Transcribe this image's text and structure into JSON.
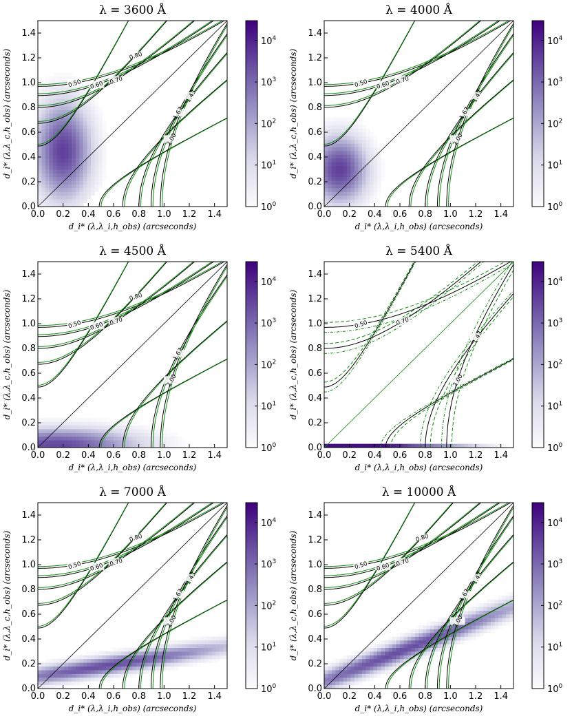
{
  "colors": {
    "green": "#0a8a0a",
    "black": "#000000",
    "purple_dark": "#3f007d",
    "purple_light": "#fcfbfd"
  },
  "axes": {
    "xlabel": "d_i* (λ,λ_i,h_obs) (arcseconds)",
    "ylabel": "d_i* (λ,λ_c,h_obs) (arcseconds)",
    "xticks": [
      "0.0",
      "0.2",
      "0.4",
      "0.6",
      "0.8",
      "1.0",
      "1.2",
      "1.4"
    ],
    "yticks": [
      "0.0",
      "0.2",
      "0.4",
      "0.6",
      "0.8",
      "1.0",
      "1.2",
      "1.4"
    ],
    "colorbar_ticks": [
      "10^0",
      "10^1",
      "10^2",
      "10^3",
      "10^4"
    ]
  },
  "chart_data": [
    {
      "type": "heatmap",
      "title": "λ = 3600 Å",
      "xlim": [
        0,
        1.5
      ],
      "ylim": [
        0,
        1.5
      ],
      "colorbar_range": [
        1,
        30000
      ],
      "contour_levels": [
        {
          "r": 0.5,
          "label": "0.50"
        },
        {
          "r": 0.6,
          "label": "0.60"
        },
        {
          "r": 0.7,
          "label": "0.70"
        },
        {
          "r": 0.8,
          "label": "0.80"
        },
        {
          "r": 0.9,
          "label": "0.90"
        },
        {
          "r": 1.11,
          "label": "1.11"
        },
        {
          "r": 1.25,
          "label": "1.25"
        },
        {
          "r": 1.43,
          "label": "1.43"
        },
        {
          "r": 1.67,
          "label": "1.67"
        },
        {
          "r": 2.0,
          "label": "2.00"
        }
      ],
      "density": {
        "kind": "blob",
        "cx": 0.2,
        "cy": 0.45,
        "sx": 0.18,
        "sy": 0.32,
        "peak_log": 4.2
      },
      "green_variants": "solid"
    },
    {
      "type": "heatmap",
      "title": "λ = 4000 Å",
      "xlim": [
        0,
        1.5
      ],
      "ylim": [
        0,
        1.5
      ],
      "colorbar_range": [
        1,
        30000
      ],
      "contour_levels": [
        {
          "r": 0.5,
          "label": "0.50"
        },
        {
          "r": 0.6,
          "label": "0.60"
        },
        {
          "r": 0.7,
          "label": "0.70"
        },
        {
          "r": 0.9,
          "label": "0.90"
        },
        {
          "r": 1.11,
          "label": "1.11"
        },
        {
          "r": 1.25,
          "label": "1.25"
        },
        {
          "r": 1.43,
          "label": "1.43"
        },
        {
          "r": 1.67,
          "label": "1.67"
        },
        {
          "r": 2.0,
          "label": "2.00"
        }
      ],
      "density": {
        "kind": "blob",
        "cx": 0.12,
        "cy": 0.3,
        "sx": 0.18,
        "sy": 0.22,
        "peak_log": 4.2
      },
      "green_variants": "solid"
    },
    {
      "type": "heatmap",
      "title": "λ = 4500 Å",
      "xlim": [
        0,
        1.5
      ],
      "ylim": [
        0,
        1.5
      ],
      "colorbar_range": [
        1,
        30000
      ],
      "contour_levels": [
        {
          "r": 0.5,
          "label": "0.50"
        },
        {
          "r": 0.6,
          "label": "0.60"
        },
        {
          "r": 0.7,
          "label": "0.70"
        },
        {
          "r": 0.8,
          "label": "0.80"
        },
        {
          "r": 0.9,
          "label": "0.90"
        },
        {
          "r": 1.11,
          "label": "1.11"
        },
        {
          "r": 1.25,
          "label": "1.25"
        },
        {
          "r": 1.67,
          "label": "1.67"
        },
        {
          "r": 2.0,
          "label": "2.00"
        }
      ],
      "density": {
        "kind": "band",
        "y0": 0.02,
        "slope": 0.0,
        "sx": 0.3,
        "sy": 0.11,
        "cx": 0.15,
        "peak_log": 4.0
      },
      "green_variants": "solid"
    },
    {
      "type": "heatmap",
      "title": "λ = 5400 Å",
      "xlim": [
        0,
        1.5
      ],
      "ylim": [
        0,
        1.5
      ],
      "colorbar_range": [
        1,
        30000
      ],
      "contour_levels": [
        {
          "r": 0.5,
          "label": "0.50"
        },
        {
          "r": 0.7,
          "label": "0.70"
        },
        {
          "r": 0.9,
          "label": "0.90"
        },
        {
          "r": 1.11,
          "label": "1.11"
        },
        {
          "r": 1.43,
          "label": "1.43"
        },
        {
          "r": 2.0,
          "label": "2.00"
        }
      ],
      "density": {
        "kind": "strip",
        "peak_log": 4.3
      },
      "green_variants": "dashed-dotted"
    },
    {
      "type": "heatmap",
      "title": "λ = 7000 Å",
      "xlim": [
        0,
        1.5
      ],
      "ylim": [
        0,
        1.5
      ],
      "colorbar_range": [
        1,
        30000
      ],
      "contour_levels": [
        {
          "r": 0.5,
          "label": "0.50"
        },
        {
          "r": 0.6,
          "label": "0.60"
        },
        {
          "r": 0.7,
          "label": "0.70"
        },
        {
          "r": 0.8,
          "label": "0.80"
        },
        {
          "r": 0.9,
          "label": "0.90"
        },
        {
          "r": 1.11,
          "label": "1.11"
        },
        {
          "r": 1.25,
          "label": "1.25"
        },
        {
          "r": 1.43,
          "label": "1.43"
        },
        {
          "r": 1.67,
          "label": "1.67"
        },
        {
          "r": 2.0,
          "label": "2.00"
        }
      ],
      "density": {
        "kind": "band",
        "y0": 0.1,
        "slope": 0.16,
        "sx": 0.5,
        "sy": 0.06,
        "cx": 0.55,
        "peak_log": 3.9
      },
      "green_variants": "solid"
    },
    {
      "type": "heatmap",
      "title": "λ = 10000 Å",
      "xlim": [
        0,
        1.5
      ],
      "ylim": [
        0,
        1.5
      ],
      "colorbar_range": [
        1,
        30000
      ],
      "contour_levels": [
        {
          "r": 0.5,
          "label": "0.50"
        },
        {
          "r": 0.6,
          "label": "0.60"
        },
        {
          "r": 0.7,
          "label": "0.70"
        },
        {
          "r": 0.8,
          "label": "0.80"
        },
        {
          "r": 0.9,
          "label": "0.90"
        },
        {
          "r": 1.11,
          "label": "1.11"
        },
        {
          "r": 1.25,
          "label": "1.25"
        },
        {
          "r": 1.43,
          "label": "1.43"
        },
        {
          "r": 1.67,
          "label": "1.67"
        },
        {
          "r": 2.0,
          "label": "2.00"
        }
      ],
      "density": {
        "kind": "band",
        "y0": 0.06,
        "slope": 0.4,
        "sx": 0.55,
        "sy": 0.07,
        "cx": 0.6,
        "peak_log": 3.9
      },
      "green_variants": "solid"
    }
  ]
}
